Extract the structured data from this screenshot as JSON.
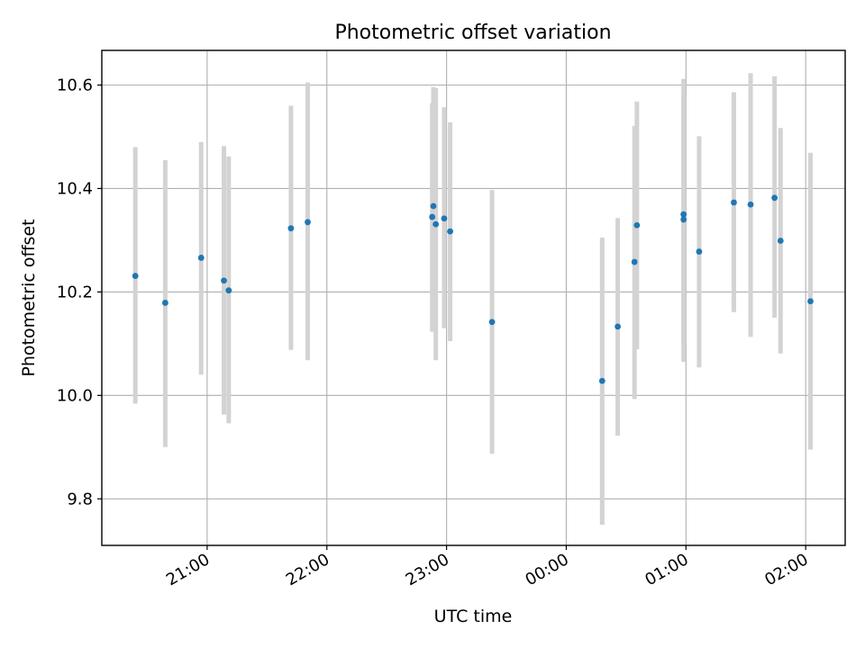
{
  "chart_data": {
    "type": "scatter",
    "title": "Photometric offset variation",
    "xlabel": "UTC time",
    "ylabel": "Photometric offset",
    "x_unit": "UTC hours (times after midnight written as 24+h)",
    "xlim": [
      20.12,
      26.33
    ],
    "ylim": [
      9.71,
      10.667
    ],
    "grid": true,
    "x_ticks": [
      {
        "value": 21,
        "label": "21:00"
      },
      {
        "value": 22,
        "label": "22:00"
      },
      {
        "value": 23,
        "label": "23:00"
      },
      {
        "value": 24,
        "label": "00:00"
      },
      {
        "value": 25,
        "label": "01:00"
      },
      {
        "value": 26,
        "label": "02:00"
      }
    ],
    "y_ticks": [
      {
        "value": 9.8,
        "label": "9.8"
      },
      {
        "value": 10.0,
        "label": "10.0"
      },
      {
        "value": 10.2,
        "label": "10.2"
      },
      {
        "value": 10.4,
        "label": "10.4"
      },
      {
        "value": 10.6,
        "label": "10.6"
      }
    ],
    "colors": {
      "points": "#1f77b4",
      "errorbars": "#d3d3d3",
      "grid": "#b0b0b0"
    },
    "points": [
      {
        "x": 20.4,
        "y": 10.231,
        "low": 9.984,
        "high": 10.48
      },
      {
        "x": 20.65,
        "y": 10.179,
        "low": 9.9,
        "high": 10.455
      },
      {
        "x": 20.95,
        "y": 10.266,
        "low": 10.04,
        "high": 10.49
      },
      {
        "x": 21.14,
        "y": 10.222,
        "low": 9.963,
        "high": 10.482
      },
      {
        "x": 21.18,
        "y": 10.203,
        "low": 9.946,
        "high": 10.462
      },
      {
        "x": 21.7,
        "y": 10.323,
        "low": 10.088,
        "high": 10.56
      },
      {
        "x": 21.84,
        "y": 10.335,
        "low": 10.068,
        "high": 10.605
      },
      {
        "x": 22.88,
        "y": 10.345,
        "low": 10.123,
        "high": 10.565
      },
      {
        "x": 22.89,
        "y": 10.366,
        "low": 10.139,
        "high": 10.596
      },
      {
        "x": 22.91,
        "y": 10.331,
        "low": 10.068,
        "high": 10.594
      },
      {
        "x": 22.98,
        "y": 10.342,
        "low": 10.13,
        "high": 10.557
      },
      {
        "x": 23.03,
        "y": 10.317,
        "low": 10.105,
        "high": 10.528
      },
      {
        "x": 23.38,
        "y": 10.142,
        "low": 9.887,
        "high": 10.397
      },
      {
        "x": 24.3,
        "y": 10.028,
        "low": 9.75,
        "high": 10.305
      },
      {
        "x": 24.43,
        "y": 10.133,
        "low": 9.922,
        "high": 10.343
      },
      {
        "x": 24.57,
        "y": 10.258,
        "low": 9.993,
        "high": 10.521
      },
      {
        "x": 24.59,
        "y": 10.329,
        "low": 10.089,
        "high": 10.568
      },
      {
        "x": 24.98,
        "y": 10.34,
        "low": 10.099,
        "high": 10.58
      },
      {
        "x": 24.98,
        "y": 10.35,
        "low": 10.065,
        "high": 10.612
      },
      {
        "x": 25.11,
        "y": 10.278,
        "low": 10.054,
        "high": 10.501
      },
      {
        "x": 25.4,
        "y": 10.373,
        "low": 10.161,
        "high": 10.586
      },
      {
        "x": 25.54,
        "y": 10.369,
        "low": 10.113,
        "high": 10.623
      },
      {
        "x": 25.74,
        "y": 10.382,
        "low": 10.15,
        "high": 10.617
      },
      {
        "x": 25.79,
        "y": 10.299,
        "low": 10.081,
        "high": 10.517
      },
      {
        "x": 26.04,
        "y": 10.182,
        "low": 9.895,
        "high": 10.469
      }
    ]
  }
}
